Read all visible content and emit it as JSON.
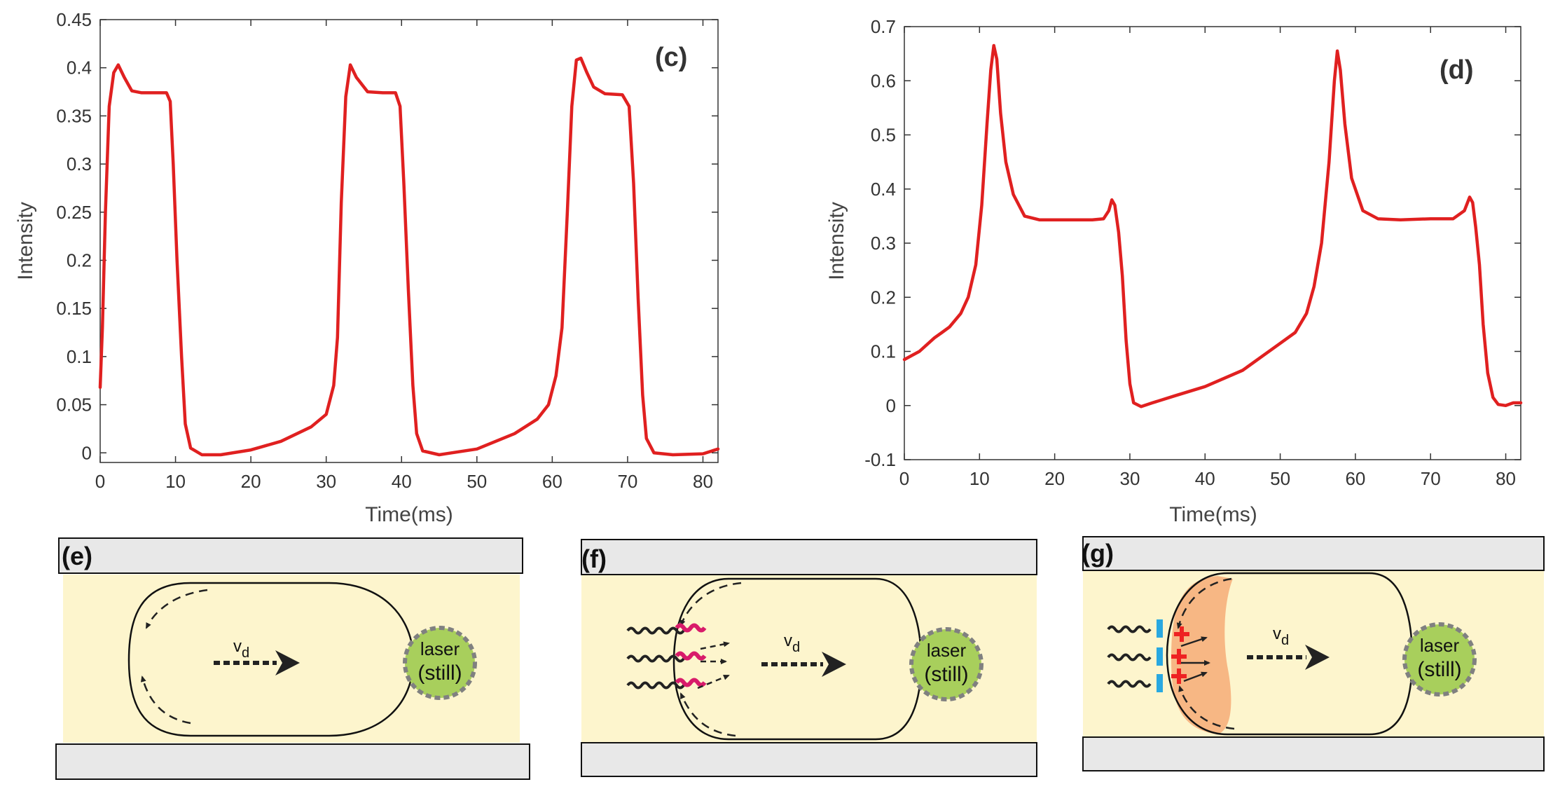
{
  "chart_data": [
    {
      "type": "line",
      "panel": "(c)",
      "xlabel": "Time(ms)",
      "ylabel": "Intensity",
      "xlim": [
        0,
        82
      ],
      "ylim": [
        -0.01,
        0.45
      ],
      "xticks": [
        0,
        10,
        20,
        30,
        40,
        50,
        60,
        70,
        80
      ],
      "xtick_labels": [
        "0",
        "10",
        "20",
        "30",
        "40",
        "50",
        "60",
        "70",
        "80"
      ],
      "yticks": [
        0,
        0.05,
        0.1,
        0.15,
        0.2,
        0.25,
        0.3,
        0.35,
        0.4,
        0.45
      ],
      "ytick_labels": [
        "0",
        "0.05",
        "0.1",
        "0.15",
        "0.2",
        "0.25",
        "0.3",
        "0.35",
        "0.4",
        "0.45"
      ],
      "color": "#e02020",
      "series": [
        {
          "name": "intensity",
          "x": [
            0,
            0.3,
            0.7,
            1.2,
            1.8,
            2.4,
            3.2,
            4.2,
            5.5,
            7.5,
            8.8,
            9.3,
            9.7,
            10.2,
            10.8,
            11.3,
            12,
            13.5,
            16,
            20,
            24,
            28,
            30,
            31,
            31.5,
            32,
            32.6,
            33.2,
            34,
            35.5,
            37.5,
            39.2,
            39.8,
            40.3,
            40.9,
            41.5,
            42,
            42.8,
            45,
            50,
            55,
            58,
            59.5,
            60.5,
            61.3,
            62,
            62.6,
            63.2,
            63.8,
            64.6,
            65.5,
            67,
            69.3,
            70.2,
            70.8,
            71.4,
            72,
            72.5,
            73.5,
            76,
            80,
            82
          ],
          "y": [
            0.068,
            0.13,
            0.25,
            0.36,
            0.395,
            0.403,
            0.39,
            0.376,
            0.374,
            0.374,
            0.374,
            0.365,
            0.3,
            0.2,
            0.1,
            0.03,
            0.005,
            -0.002,
            -0.002,
            0.003,
            0.012,
            0.027,
            0.04,
            0.07,
            0.12,
            0.26,
            0.37,
            0.403,
            0.39,
            0.375,
            0.374,
            0.374,
            0.36,
            0.28,
            0.17,
            0.07,
            0.02,
            0.002,
            -0.002,
            0.004,
            0.02,
            0.035,
            0.05,
            0.08,
            0.13,
            0.25,
            0.36,
            0.408,
            0.41,
            0.395,
            0.38,
            0.373,
            0.372,
            0.36,
            0.28,
            0.16,
            0.06,
            0.015,
            0.0,
            -0.002,
            -0.001,
            0.004
          ]
        }
      ]
    },
    {
      "type": "line",
      "panel": "(d)",
      "xlabel": "Time(ms)",
      "ylabel": "Intensity",
      "xlim": [
        0,
        82
      ],
      "ylim": [
        -0.1,
        0.7
      ],
      "xticks": [
        0,
        10,
        20,
        30,
        40,
        50,
        60,
        70,
        80
      ],
      "xtick_labels": [
        "0",
        "10",
        "20",
        "30",
        "40",
        "50",
        "60",
        "70",
        "80"
      ],
      "yticks": [
        -0.1,
        0,
        0.1,
        0.2,
        0.3,
        0.4,
        0.5,
        0.6,
        0.7
      ],
      "ytick_labels": [
        "-0.1",
        "0",
        "0.1",
        "0.2",
        "0.3",
        "0.4",
        "0.5",
        "0.6",
        "0.7"
      ],
      "color": "#e02020",
      "series": [
        {
          "name": "intensity",
          "x": [
            0,
            2,
            4,
            5,
            6,
            7.5,
            8.5,
            9.5,
            10.3,
            11,
            11.5,
            11.9,
            12.3,
            12.8,
            13.5,
            14.5,
            16,
            18,
            22,
            25,
            26.5,
            27.2,
            27.6,
            28,
            28.5,
            29,
            29.5,
            30,
            30.5,
            31.5,
            33,
            36,
            40,
            45,
            50,
            52,
            53.5,
            54.5,
            55.5,
            56.5,
            57.2,
            57.6,
            58,
            58.6,
            59.5,
            61,
            63,
            66,
            70,
            73,
            74.5,
            75.2,
            75.6,
            76,
            76.5,
            77,
            77.6,
            78.3,
            79,
            80,
            81,
            82
          ],
          "y": [
            0.085,
            0.1,
            0.125,
            0.135,
            0.145,
            0.17,
            0.2,
            0.26,
            0.37,
            0.52,
            0.62,
            0.665,
            0.64,
            0.54,
            0.45,
            0.39,
            0.35,
            0.343,
            0.343,
            0.343,
            0.345,
            0.36,
            0.38,
            0.37,
            0.32,
            0.24,
            0.12,
            0.04,
            0.005,
            -0.002,
            0.005,
            0.018,
            0.035,
            0.065,
            0.115,
            0.135,
            0.17,
            0.22,
            0.3,
            0.45,
            0.6,
            0.655,
            0.62,
            0.52,
            0.42,
            0.36,
            0.345,
            0.343,
            0.345,
            0.345,
            0.36,
            0.385,
            0.375,
            0.33,
            0.26,
            0.15,
            0.06,
            0.015,
            0.002,
            0.0,
            0.005,
            0.005
          ]
        }
      ]
    }
  ],
  "schematics": {
    "colors": {
      "channel_fill": "#fdf5cd",
      "wall_fill": "#e8e8e8",
      "laser_fill": "#a8cf5c",
      "laser_border": "#808080",
      "molecule_pink": "#d81b6a",
      "charge_red": "#ee2222",
      "marker_blue": "#29a8e0",
      "region_orange": "#f5a872"
    },
    "panels": [
      {
        "label": "(e)",
        "velocity_label": "v",
        "velocity_sub": "d",
        "laser_line1": "laser",
        "laser_line2": "(still)"
      },
      {
        "label": "(f)",
        "velocity_label": "v",
        "velocity_sub": "d",
        "laser_line1": "laser",
        "laser_line2": "(still)"
      },
      {
        "label": "(g)",
        "velocity_label": "v",
        "velocity_sub": "d",
        "laser_line1": "laser",
        "laser_line2": "(still)"
      }
    ]
  }
}
